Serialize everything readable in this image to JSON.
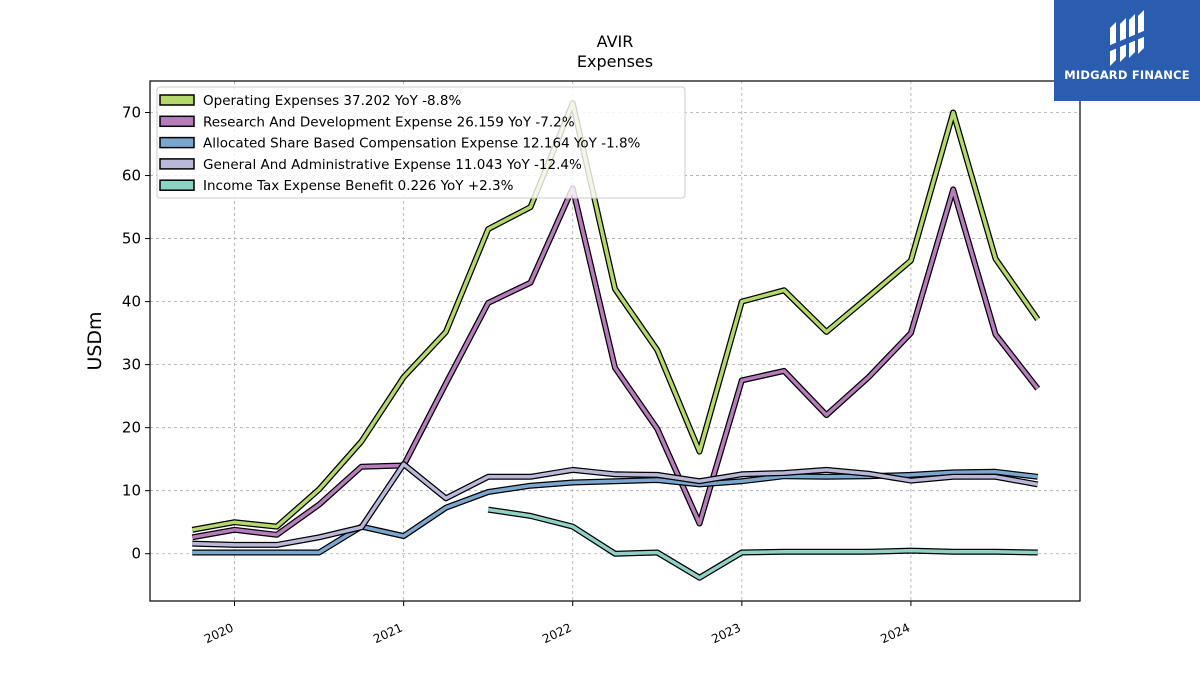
{
  "brand": {
    "name": "MIDGARD FINANCE",
    "bg_color": "#2a5db0"
  },
  "chart_data": {
    "type": "line",
    "title": "AVIR",
    "subtitle": "Expenses",
    "xlabel": "",
    "ylabel": "USDm",
    "xlim": [
      2019.5,
      2025.0
    ],
    "ylim": [
      -7.5,
      75
    ],
    "x_ticks": [
      "2020",
      "2021",
      "2022",
      "2023",
      "2024"
    ],
    "y_ticks": [
      0,
      10,
      20,
      30,
      40,
      50,
      60,
      70
    ],
    "grid": true,
    "legend_position": "top-left",
    "series": [
      {
        "name": "Operating Expenses",
        "legend": "Operating Expenses  37.202 YoY -8.8%",
        "color": "#b5d86b",
        "points": [
          [
            2019.75,
            3.8
          ],
          [
            2020.0,
            5.0
          ],
          [
            2020.25,
            4.3
          ],
          [
            2020.5,
            10.2
          ],
          [
            2020.75,
            17.8
          ],
          [
            2021.0,
            28.0
          ],
          [
            2021.25,
            35.2
          ],
          [
            2021.5,
            51.5
          ],
          [
            2021.75,
            55.0
          ],
          [
            2022.0,
            71.5
          ],
          [
            2022.25,
            42.0
          ],
          [
            2022.5,
            32.3
          ],
          [
            2022.75,
            16.2
          ],
          [
            2023.0,
            40.0
          ],
          [
            2023.25,
            41.8
          ],
          [
            2023.5,
            35.2
          ],
          [
            2023.75,
            40.8
          ],
          [
            2024.0,
            46.5
          ],
          [
            2024.25,
            70.0
          ],
          [
            2024.5,
            46.8
          ],
          [
            2024.75,
            37.2
          ]
        ]
      },
      {
        "name": "Research And Development Expense",
        "legend": "Research And Development Expense  26.159 YoY -7.2%",
        "color": "#b77cbb",
        "points": [
          [
            2019.75,
            2.6
          ],
          [
            2020.0,
            3.8
          ],
          [
            2020.25,
            3.0
          ],
          [
            2020.5,
            7.8
          ],
          [
            2020.75,
            13.8
          ],
          [
            2021.0,
            14.0
          ],
          [
            2021.25,
            27.0
          ],
          [
            2021.5,
            39.8
          ],
          [
            2021.75,
            43.0
          ],
          [
            2022.0,
            58.0
          ],
          [
            2022.25,
            29.5
          ],
          [
            2022.5,
            19.8
          ],
          [
            2022.75,
            4.8
          ],
          [
            2023.0,
            27.5
          ],
          [
            2023.25,
            29.0
          ],
          [
            2023.5,
            22.0
          ],
          [
            2023.75,
            28.0
          ],
          [
            2024.0,
            35.0
          ],
          [
            2024.25,
            57.8
          ],
          [
            2024.5,
            34.8
          ],
          [
            2024.75,
            26.2
          ]
        ]
      },
      {
        "name": "Allocated Share Based Compensation Expense",
        "legend": "Allocated Share Based Compensation Expense  12.164 YoY -1.8%",
        "color": "#7ba7cf",
        "points": [
          [
            2019.75,
            0.2
          ],
          [
            2020.0,
            0.2
          ],
          [
            2020.25,
            0.2
          ],
          [
            2020.5,
            0.2
          ],
          [
            2020.75,
            4.3
          ],
          [
            2021.0,
            2.8
          ],
          [
            2021.25,
            7.3
          ],
          [
            2021.5,
            9.8
          ],
          [
            2021.75,
            10.8
          ],
          [
            2022.0,
            11.3
          ],
          [
            2022.25,
            11.5
          ],
          [
            2022.5,
            11.7
          ],
          [
            2022.75,
            11.0
          ],
          [
            2023.0,
            11.5
          ],
          [
            2023.25,
            12.3
          ],
          [
            2023.5,
            12.2
          ],
          [
            2023.75,
            12.3
          ],
          [
            2024.0,
            12.5
          ],
          [
            2024.25,
            12.9
          ],
          [
            2024.5,
            13.0
          ],
          [
            2024.75,
            12.2
          ]
        ]
      },
      {
        "name": "General And Administrative Expense",
        "legend": "General And Administrative Expense  11.043 YoY -12.4%",
        "color": "#b9b8d9",
        "points": [
          [
            2019.75,
            1.6
          ],
          [
            2020.0,
            1.4
          ],
          [
            2020.25,
            1.4
          ],
          [
            2020.5,
            2.6
          ],
          [
            2020.75,
            4.2
          ],
          [
            2021.0,
            14.2
          ],
          [
            2021.25,
            8.8
          ],
          [
            2021.5,
            12.2
          ],
          [
            2021.75,
            12.2
          ],
          [
            2022.0,
            13.3
          ],
          [
            2022.25,
            12.6
          ],
          [
            2022.5,
            12.5
          ],
          [
            2022.75,
            11.5
          ],
          [
            2023.0,
            12.6
          ],
          [
            2023.25,
            12.8
          ],
          [
            2023.5,
            13.3
          ],
          [
            2023.75,
            12.7
          ],
          [
            2024.0,
            11.6
          ],
          [
            2024.25,
            12.2
          ],
          [
            2024.5,
            12.2
          ],
          [
            2024.75,
            11.0
          ]
        ]
      },
      {
        "name": "Income Tax Expense Benefit",
        "legend": "Income Tax Expense Benefit  0.226 YoY +2.3%",
        "color": "#8fd1c4",
        "points": [
          [
            2021.5,
            7.0
          ],
          [
            2021.75,
            6.0
          ],
          [
            2022.0,
            4.3
          ],
          [
            2022.25,
            0.0
          ],
          [
            2022.5,
            0.2
          ],
          [
            2022.75,
            -3.8
          ],
          [
            2023.0,
            0.2
          ],
          [
            2023.25,
            0.3
          ],
          [
            2023.5,
            0.3
          ],
          [
            2023.75,
            0.3
          ],
          [
            2024.0,
            0.5
          ],
          [
            2024.25,
            0.3
          ],
          [
            2024.5,
            0.3
          ],
          [
            2024.75,
            0.2
          ]
        ]
      }
    ]
  }
}
